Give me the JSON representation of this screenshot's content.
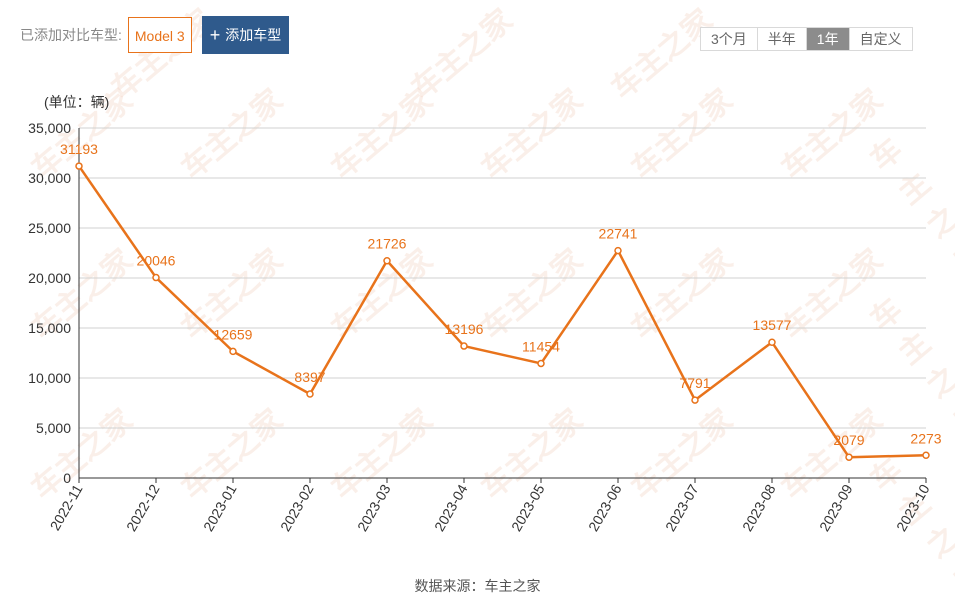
{
  "compare": {
    "label": "已添加对比车型:",
    "selected_model": "Model 3",
    "add_button": "添加车型"
  },
  "range_tabs": [
    {
      "label": "3个月",
      "active": false
    },
    {
      "label": "半年",
      "active": false
    },
    {
      "label": "1年",
      "active": true
    },
    {
      "label": "自定义",
      "active": false
    }
  ],
  "unit": "(单位：辆)",
  "source": "数据来源：车主之家",
  "watermark": "车主之家",
  "colors": {
    "line": "#e8731b",
    "accent_button": "#2f5a8c",
    "grid": "#d0d0d0"
  },
  "chart_data": {
    "type": "line",
    "categories": [
      "2022-11",
      "2022-12",
      "2023-01",
      "2023-02",
      "2023-03",
      "2023-04",
      "2023-05",
      "2023-06",
      "2023-07",
      "2023-08",
      "2023-09",
      "2023-10"
    ],
    "series": [
      {
        "values": [
          31193,
          20046,
          12659,
          8397,
          21726,
          13196,
          11454,
          22741,
          7791,
          13577,
          2079,
          2273
        ]
      }
    ],
    "ylabel": "(单位：辆)",
    "ylim": [
      0,
      35000
    ],
    "yticks": [
      "0",
      "5,000",
      "10,000",
      "15,000",
      "20,000",
      "25,000",
      "30,000",
      "35,000"
    ],
    "grid": true,
    "legend": false
  }
}
